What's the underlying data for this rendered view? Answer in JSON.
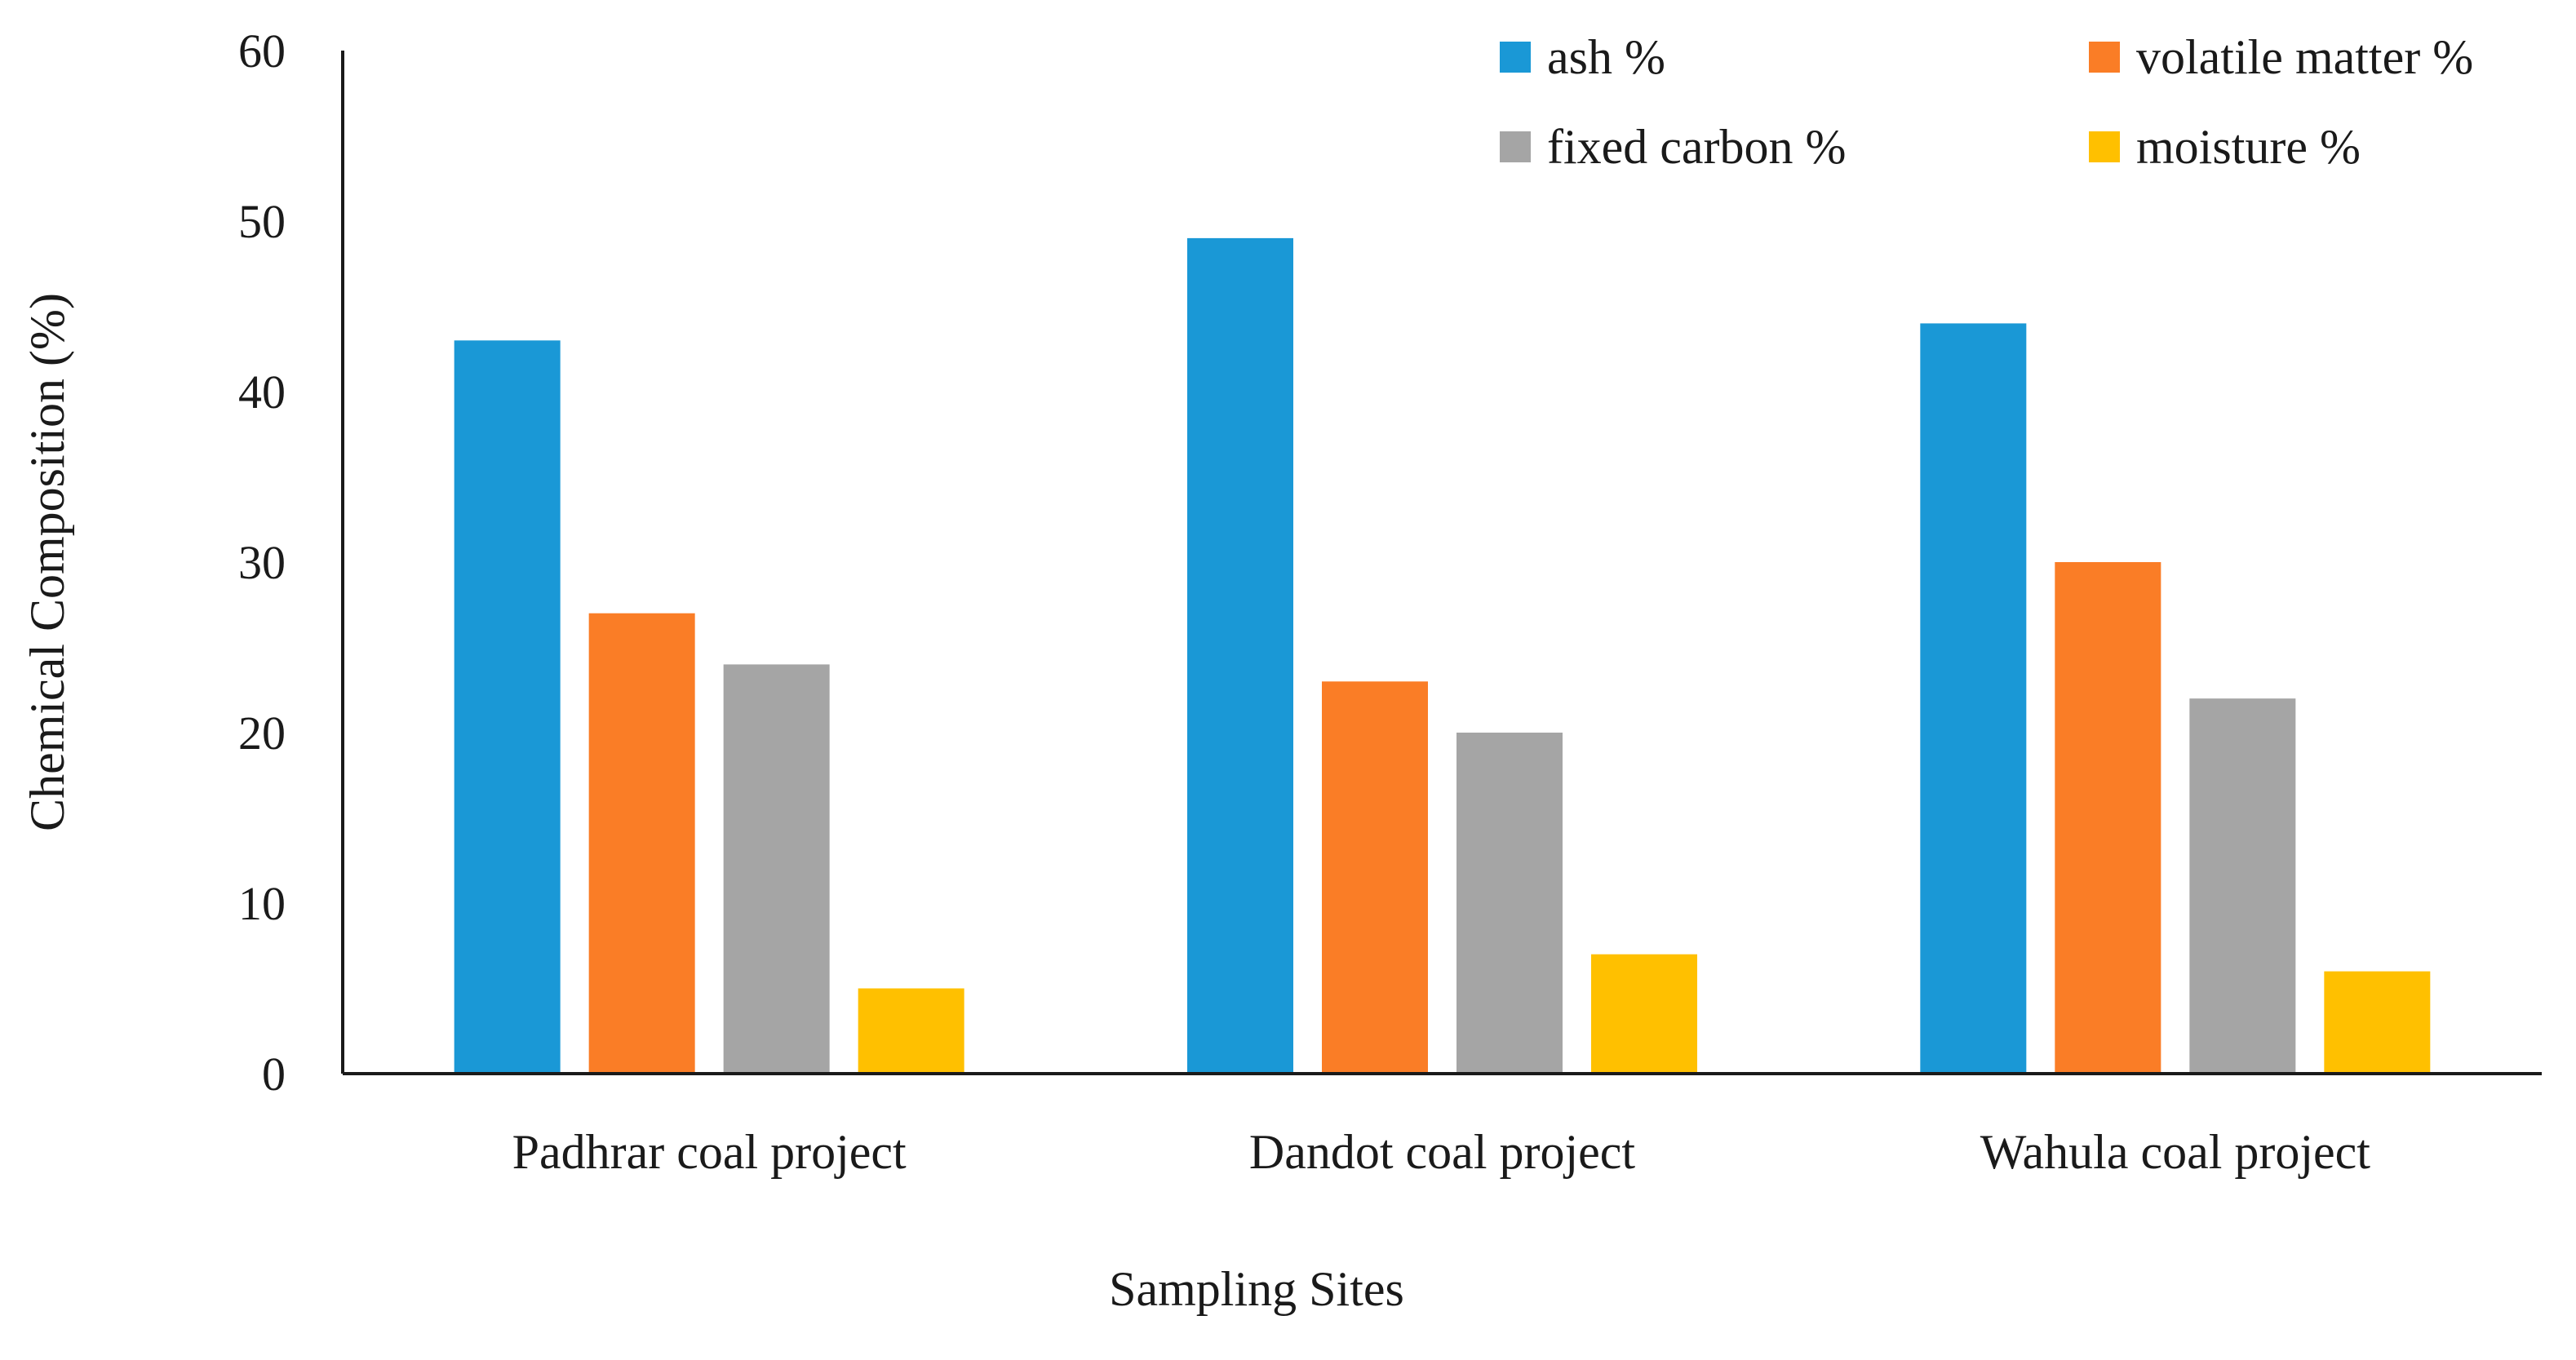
{
  "chart_data": {
    "type": "bar",
    "title": "",
    "xlabel": "Sampling Sites",
    "ylabel": "Chemical Composition (%)",
    "ylim": [
      0,
      60
    ],
    "yticks": [
      0,
      10,
      20,
      30,
      40,
      50,
      60
    ],
    "grid": false,
    "legend_position": "top-right",
    "categories": [
      "Padhrar coal project",
      "Dandot coal project",
      "Wahula coal project"
    ],
    "series": [
      {
        "name": "ash %",
        "color": "#1a98d6",
        "values": [
          43,
          49,
          44
        ]
      },
      {
        "name": "volatile matter %",
        "color": "#fa7d26",
        "values": [
          27,
          23,
          30
        ]
      },
      {
        "name": "fixed carbon %",
        "color": "#a5a5a5",
        "values": [
          24,
          20,
          22
        ]
      },
      {
        "name": "moisture %",
        "color": "#ffc000",
        "values": [
          5,
          7,
          6
        ]
      }
    ]
  }
}
